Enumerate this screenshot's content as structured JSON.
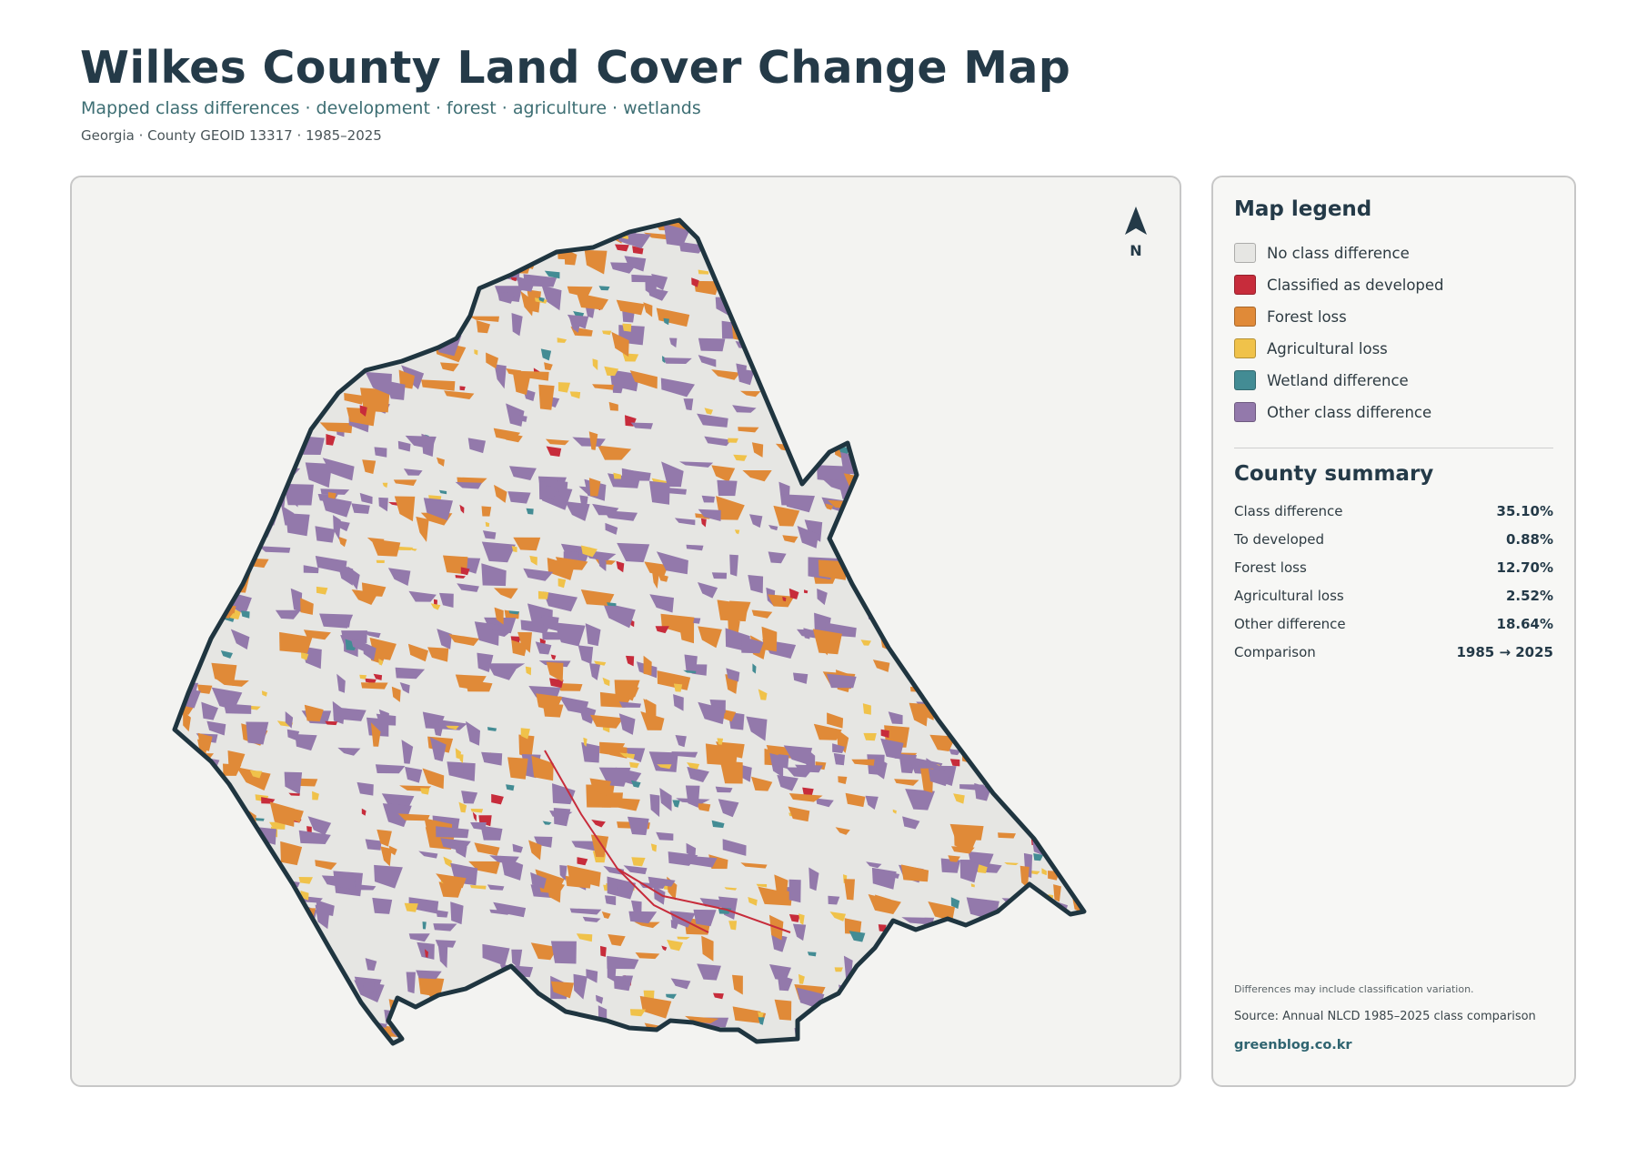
{
  "header": {
    "title": "Wilkes County Land Cover Change Map",
    "subtitle": "Mapped class differences · development · forest · agriculture · wetlands",
    "meta": "Georgia · County GEOID 13317 · 1985–2025"
  },
  "map": {
    "north_label": "N",
    "boundary_color": "#1f3540",
    "background_color": "#e6e6e3"
  },
  "legend": {
    "title": "Map legend",
    "items": [
      {
        "label": "No class difference",
        "color": "#e6e6e3"
      },
      {
        "label": "Classified as developed",
        "color": "#c72c3b"
      },
      {
        "label": "Forest loss",
        "color": "#e08a38"
      },
      {
        "label": "Agricultural loss",
        "color": "#f0c24a"
      },
      {
        "label": "Wetland difference",
        "color": "#438c94"
      },
      {
        "label": "Other class difference",
        "color": "#9379ab"
      }
    ]
  },
  "summary": {
    "title": "County summary",
    "rows": [
      {
        "label": "Class difference",
        "value": "35.10%"
      },
      {
        "label": "To developed",
        "value": "0.88%"
      },
      {
        "label": "Forest loss",
        "value": "12.70%"
      },
      {
        "label": "Agricultural loss",
        "value": "2.52%"
      },
      {
        "label": "Other difference",
        "value": "18.64%"
      },
      {
        "label": "Comparison",
        "value": "1985 → 2025"
      }
    ]
  },
  "footer": {
    "note": "Differences may include classification variation.",
    "source": "Source: Annual NLCD 1985–2025 class comparison",
    "site": "greenblog.co.kr"
  }
}
